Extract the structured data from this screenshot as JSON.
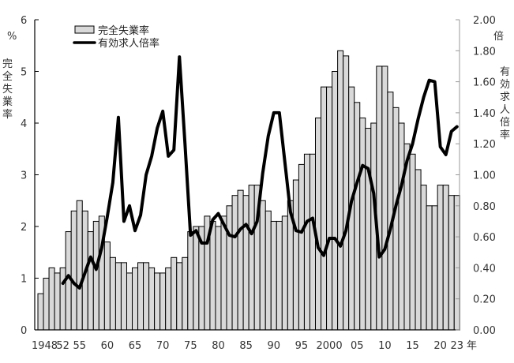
{
  "chart_data": {
    "type": "bar+line",
    "title": "",
    "x_unit_label": "年",
    "x_tick_labels": [
      {
        "year": 1948,
        "label": "1948"
      },
      {
        "year": 1952,
        "label": "52"
      },
      {
        "year": 1955,
        "label": "55"
      },
      {
        "year": 1960,
        "label": "60"
      },
      {
        "year": 1965,
        "label": "65"
      },
      {
        "year": 1970,
        "label": "70"
      },
      {
        "year": 1975,
        "label": "75"
      },
      {
        "year": 1980,
        "label": "80"
      },
      {
        "year": 1985,
        "label": "85"
      },
      {
        "year": 1990,
        "label": "90"
      },
      {
        "year": 1995,
        "label": "95"
      },
      {
        "year": 2000,
        "label": "2000"
      },
      {
        "year": 2005,
        "label": "05"
      },
      {
        "year": 2010,
        "label": "10"
      },
      {
        "year": 2015,
        "label": "15"
      },
      {
        "year": 2020,
        "label": "20"
      },
      {
        "year": 2023,
        "label": "23"
      }
    ],
    "left_axis": {
      "unit": "%",
      "label": "完全失業率",
      "ylim": [
        0,
        6
      ],
      "ticks": [
        "0",
        "1",
        "2",
        "3",
        "4",
        "5",
        "6"
      ]
    },
    "right_axis": {
      "unit": "倍",
      "label": "有効求人倍率",
      "ylim": [
        0,
        2
      ],
      "ticks": [
        "0.00",
        "0.20",
        "0.40",
        "0.60",
        "0.80",
        "1.00",
        "1.20",
        "1.40",
        "1.60",
        "1.80",
        "2.00"
      ]
    },
    "legend": {
      "position": "top-left",
      "entries": [
        {
          "name": "完全失業率",
          "style": "bar"
        },
        {
          "name": "有効求人倍率",
          "style": "line"
        }
      ]
    },
    "grid": false,
    "colors": {
      "bar_fill": "#d9d9d9",
      "bar_stroke": "#000000",
      "line": "#000000"
    },
    "series": [
      {
        "name": "完全失業率",
        "type": "bar",
        "axis": "left",
        "start_year": 1948,
        "values": [
          0.7,
          1.0,
          1.2,
          1.1,
          1.2,
          1.9,
          2.3,
          2.5,
          2.3,
          1.9,
          2.1,
          2.2,
          1.7,
          1.4,
          1.3,
          1.3,
          1.1,
          1.2,
          1.3,
          1.3,
          1.2,
          1.1,
          1.1,
          1.2,
          1.4,
          1.3,
          1.4,
          1.9,
          2.0,
          2.0,
          2.2,
          2.1,
          2.0,
          2.2,
          2.4,
          2.6,
          2.7,
          2.6,
          2.8,
          2.8,
          2.5,
          2.3,
          2.1,
          2.1,
          2.2,
          2.5,
          2.9,
          3.2,
          3.4,
          3.4,
          4.1,
          4.7,
          4.7,
          5.0,
          5.4,
          5.3,
          4.7,
          4.4,
          4.1,
          3.9,
          4.0,
          5.1,
          5.1,
          4.6,
          4.3,
          4.0,
          3.6,
          3.4,
          3.1,
          2.8,
          2.4,
          2.4,
          2.8,
          2.8,
          2.6,
          2.6
        ]
      },
      {
        "name": "有効求人倍率",
        "type": "line",
        "axis": "right",
        "start_year": 1952,
        "values": [
          0.3,
          0.35,
          0.3,
          0.27,
          0.37,
          0.47,
          0.39,
          0.53,
          0.73,
          0.95,
          1.37,
          0.7,
          0.8,
          0.64,
          0.74,
          1.0,
          1.12,
          1.3,
          1.41,
          1.12,
          1.16,
          1.76,
          1.2,
          0.61,
          0.64,
          0.56,
          0.56,
          0.71,
          0.75,
          0.68,
          0.61,
          0.6,
          0.65,
          0.68,
          0.62,
          0.7,
          1.01,
          1.25,
          1.4,
          1.4,
          1.08,
          0.76,
          0.64,
          0.63,
          0.7,
          0.72,
          0.53,
          0.48,
          0.59,
          0.59,
          0.54,
          0.64,
          0.83,
          0.95,
          1.06,
          1.04,
          0.88,
          0.47,
          0.52,
          0.65,
          0.8,
          0.93,
          1.09,
          1.2,
          1.36,
          1.5,
          1.61,
          1.6,
          1.18,
          1.13,
          1.28,
          1.31
        ]
      }
    ]
  }
}
